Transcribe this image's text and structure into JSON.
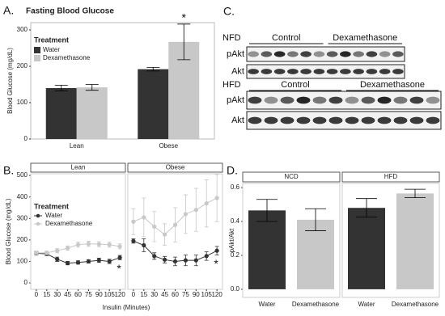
{
  "chart_data": [
    {
      "type": "bar",
      "label": "A.",
      "title": "Fasting Blood Glucose",
      "ylabel": "Blood Glucose (mg/dL)",
      "categories": [
        "Lean",
        "Obese"
      ],
      "series": [
        {
          "name": "Water",
          "color": "#333333",
          "values": [
            140,
            192
          ],
          "errors": [
            8,
            5
          ]
        },
        {
          "name": "Dexamethasone",
          "color": "#c8c8c8",
          "values": [
            142,
            267
          ],
          "errors": [
            8,
            49
          ]
        }
      ],
      "ylim": [
        0,
        320
      ],
      "yticks": [
        0,
        100,
        200,
        300
      ],
      "legend_title": "Treatment",
      "legend": "top-left",
      "annotations": [
        "*"
      ]
    },
    {
      "type": "line",
      "label": "B.",
      "facets": [
        "Lean",
        "Obese"
      ],
      "x": [
        0,
        15,
        30,
        45,
        60,
        75,
        90,
        105,
        120
      ],
      "xlim": [
        -8,
        128
      ],
      "xticks": [
        0,
        15,
        30,
        45,
        60,
        75,
        90,
        105,
        120
      ],
      "xlabel": "Insulin (Minutes)",
      "ylabel": "Blood Glucose (mg/dL)",
      "ylim": [
        -30,
        508
      ],
      "yticks": [
        0,
        100,
        200,
        300,
        400,
        500
      ],
      "legend_title": "Treatment",
      "legend": "top-left",
      "series": [
        {
          "name": "Water",
          "color": "#333333",
          "values": [
            [
              138,
              135,
              110,
              92,
              95,
              100,
              105,
              100,
              118
            ],
            [
              195,
              175,
              125,
              108,
              100,
              105,
              105,
              125,
              150
            ]
          ],
          "errors": [
            [
              8,
              8,
              10,
              8,
              8,
              8,
              10,
              10,
              10
            ],
            [
              10,
              30,
              15,
              15,
              20,
              25,
              25,
              20,
              20
            ]
          ]
        },
        {
          "name": "Dexamethasone",
          "color": "#c8c8c8",
          "values": [
            [
              140,
              140,
              150,
              162,
              178,
              182,
              180,
              178,
              170
            ],
            [
              285,
              305,
              262,
              225,
              270,
              320,
              340,
              370,
              395
            ]
          ],
          "errors": [
            [
              8,
              8,
              10,
              10,
              12,
              12,
              12,
              12,
              12
            ],
            [
              60,
              90,
              70,
              50,
              80,
              90,
              100,
              110,
              110
            ]
          ]
        }
      ],
      "annotations": [
        "*",
        "*"
      ]
    },
    {
      "type": "bar_facet",
      "label": "D.",
      "ylabel": "pAkt/Akt",
      "colors": [
        "#333333",
        "#c8c8c8"
      ],
      "facets": [
        {
          "label": "NCD",
          "categories": [
            "Water",
            "Dexamethasone"
          ],
          "values": [
            0.465,
            0.41
          ],
          "errors": [
            0.065,
            0.065
          ]
        },
        {
          "label": "HFD",
          "categories": [
            "Water",
            "Dexamethasone"
          ],
          "values": [
            0.48,
            0.565
          ],
          "errors": [
            0.055,
            0.025
          ]
        }
      ],
      "ylim": [
        -0.048,
        0.624
      ],
      "yticks": [
        {
          "value": 0,
          "label": "0.0"
        },
        0.2,
        0.4,
        0.6
      ]
    }
  ],
  "blot": {
    "label": "C.",
    "groups": [
      {
        "name": "NFD",
        "conditions": [
          "Control",
          "Dexamethasone"
        ],
        "rows": [
          "pAkt",
          "Akt"
        ]
      },
      {
        "name": "HFD",
        "conditions": [
          "Control",
          "Dexamethasone"
        ],
        "rows": [
          "pAkt",
          "Akt"
        ]
      }
    ]
  }
}
